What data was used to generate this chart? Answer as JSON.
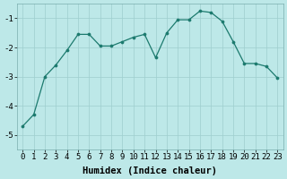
{
  "x": [
    0,
    1,
    2,
    3,
    4,
    5,
    6,
    7,
    8,
    9,
    10,
    11,
    12,
    13,
    14,
    15,
    16,
    17,
    18,
    19,
    20,
    21,
    22,
    23
  ],
  "y": [
    -4.7,
    -4.3,
    -3.0,
    -2.6,
    -2.1,
    -1.55,
    -1.55,
    -1.95,
    -1.95,
    -1.8,
    -1.65,
    -1.55,
    -2.35,
    -1.5,
    -1.05,
    -1.05,
    -0.75,
    -0.8,
    -1.1,
    -1.8,
    -2.55,
    -2.55,
    -2.65,
    -3.05
  ],
  "xlabel": "Humidex (Indice chaleur)",
  "xlim": [
    -0.5,
    23.5
  ],
  "ylim": [
    -5.5,
    -0.5
  ],
  "yticks": [
    -5,
    -4,
    -3,
    -2,
    -1
  ],
  "xticks": [
    0,
    1,
    2,
    3,
    4,
    5,
    6,
    7,
    8,
    9,
    10,
    11,
    12,
    13,
    14,
    15,
    16,
    17,
    18,
    19,
    20,
    21,
    22,
    23
  ],
  "line_color": "#1c7a6e",
  "marker_color": "#1c7a6e",
  "bg_color": "#bde8e8",
  "grid_color": "#9ecece",
  "xlabel_fontsize": 7.5,
  "tick_fontsize": 6.5
}
